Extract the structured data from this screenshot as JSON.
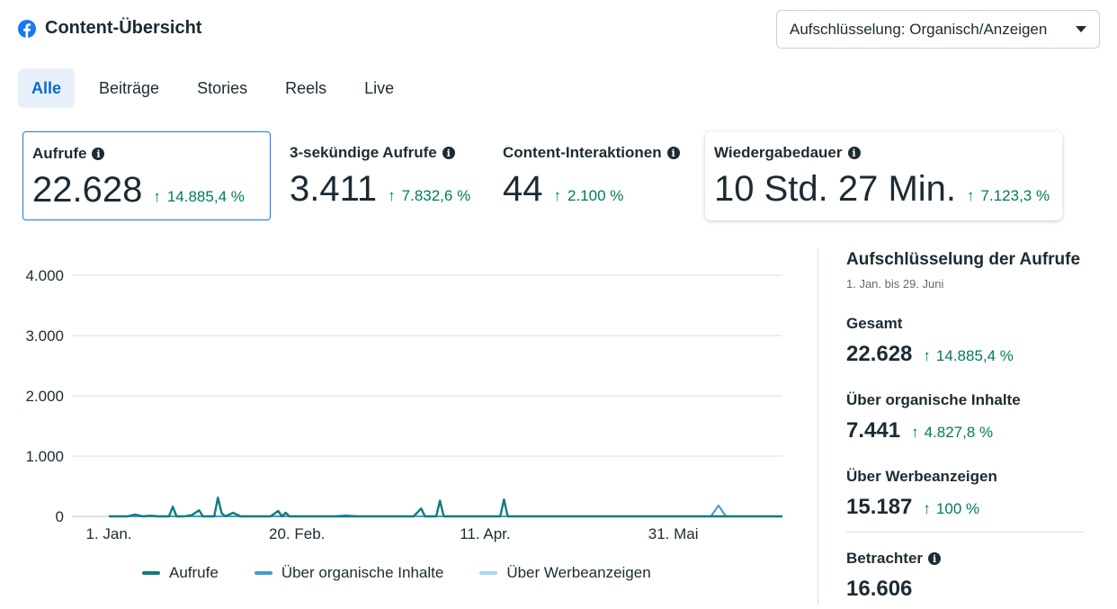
{
  "header": {
    "title": "Content-Übersicht",
    "icon": "facebook-icon"
  },
  "dropdown": {
    "label": "Aufschlüsselung: Organisch/Anzeigen"
  },
  "tabs": [
    {
      "label": "Alle",
      "active": true
    },
    {
      "label": "Beiträge",
      "active": false
    },
    {
      "label": "Stories",
      "active": false
    },
    {
      "label": "Reels",
      "active": false
    },
    {
      "label": "Live",
      "active": false
    }
  ],
  "metrics": [
    {
      "label": "Aufrufe",
      "value": "22.628",
      "change": "14.885,4 %"
    },
    {
      "label": "3-sekündige Aufrufe",
      "value": "3.411",
      "change": "7.832,6 %"
    },
    {
      "label": "Content-Interaktionen",
      "value": "44",
      "change": "2.100 %"
    },
    {
      "label": "Wiedergabedauer",
      "value": "10 Std. 27 Min.",
      "change": "7.123,3 %"
    }
  ],
  "chart_data": {
    "type": "line",
    "ylim": [
      0,
      4000
    ],
    "y_ticks": [
      "4.000",
      "3.000",
      "2.000",
      "1.000",
      "0"
    ],
    "x_ticks": [
      "1. Jan.",
      "20. Feb.",
      "11. Apr.",
      "31. Mai"
    ],
    "x_tick_days": [
      0,
      50,
      100,
      150
    ],
    "x_range_days": [
      0,
      179
    ],
    "grid": true,
    "legend_position": "bottom",
    "series": [
      {
        "name": "Aufrufe",
        "color": "#0e7c7b",
        "points": [
          [
            0,
            0
          ],
          [
            5,
            0
          ],
          [
            7,
            30
          ],
          [
            9,
            0
          ],
          [
            11,
            10
          ],
          [
            13,
            0
          ],
          [
            15,
            0
          ],
          [
            16,
            0
          ],
          [
            17,
            160
          ],
          [
            18,
            0
          ],
          [
            20,
            0
          ],
          [
            22,
            20
          ],
          [
            24,
            100
          ],
          [
            25,
            0
          ],
          [
            26,
            0
          ],
          [
            28,
            0
          ],
          [
            29,
            310
          ],
          [
            30,
            50
          ],
          [
            31,
            0
          ],
          [
            33,
            60
          ],
          [
            35,
            0
          ],
          [
            36,
            0
          ],
          [
            37,
            0
          ],
          [
            38,
            0
          ],
          [
            39,
            0
          ],
          [
            40,
            0
          ],
          [
            41,
            0
          ],
          [
            42,
            0
          ],
          [
            43,
            0
          ],
          [
            45,
            90
          ],
          [
            46,
            0
          ],
          [
            47,
            60
          ],
          [
            48,
            0
          ],
          [
            49,
            0
          ],
          [
            50,
            0
          ],
          [
            52,
            0
          ],
          [
            54,
            0
          ],
          [
            56,
            0
          ],
          [
            58,
            0
          ],
          [
            60,
            0
          ],
          [
            62,
            0
          ],
          [
            64,
            0
          ],
          [
            67,
            0
          ],
          [
            70,
            0
          ],
          [
            73,
            0
          ],
          [
            76,
            0
          ],
          [
            79,
            0
          ],
          [
            81,
            0
          ],
          [
            83,
            130
          ],
          [
            84,
            0
          ],
          [
            86,
            0
          ],
          [
            87,
            0
          ],
          [
            88,
            260
          ],
          [
            89,
            0
          ],
          [
            90,
            0
          ],
          [
            92,
            0
          ],
          [
            93,
            0
          ],
          [
            94,
            0
          ],
          [
            95,
            0
          ],
          [
            96,
            0
          ],
          [
            97,
            0
          ],
          [
            98,
            0
          ],
          [
            99,
            0
          ],
          [
            100,
            0
          ],
          [
            101,
            0
          ],
          [
            102,
            0
          ],
          [
            103,
            0
          ],
          [
            104,
            0
          ],
          [
            105,
            280
          ],
          [
            106,
            0
          ],
          [
            107,
            0
          ],
          [
            108,
            0
          ],
          [
            109,
            0
          ],
          [
            110,
            0
          ],
          [
            111,
            0
          ],
          [
            112,
            0
          ],
          [
            113,
            0
          ],
          [
            114,
            0
          ],
          [
            115,
            0
          ],
          [
            116,
            0
          ],
          [
            117,
            0
          ],
          [
            118,
            0
          ],
          [
            119,
            0
          ],
          [
            120,
            0
          ],
          [
            122,
            0
          ],
          [
            124,
            0
          ],
          [
            125,
            0
          ],
          [
            126,
            0
          ],
          [
            127,
            0
          ],
          [
            128,
            0
          ],
          [
            129,
            0
          ],
          [
            130,
            0
          ],
          [
            131,
            0
          ],
          [
            132,
            0
          ],
          [
            133,
            0
          ],
          [
            135,
            0
          ],
          [
            136,
            0
          ],
          [
            137,
            0
          ],
          [
            138,
            0
          ],
          [
            139,
            0
          ],
          [
            140,
            0
          ],
          [
            141,
            0
          ],
          [
            142,
            0
          ],
          [
            143,
            0
          ],
          [
            144,
            0
          ],
          [
            145,
            0
          ],
          [
            146,
            0
          ],
          [
            147,
            0
          ],
          [
            148,
            0
          ],
          [
            149,
            0
          ],
          [
            150,
            0
          ],
          [
            151,
            0
          ],
          [
            152,
            0
          ],
          [
            153,
            0
          ],
          [
            154,
            0
          ],
          [
            155,
            0
          ],
          [
            156,
            0
          ],
          [
            157,
            0
          ],
          [
            158,
            0
          ],
          [
            159,
            0
          ],
          [
            160,
            0
          ],
          [
            161,
            0
          ],
          [
            162,
            0
          ],
          [
            164,
            0
          ],
          [
            165,
            0
          ],
          [
            166,
            0
          ],
          [
            167,
            0
          ],
          [
            168,
            0
          ],
          [
            169,
            0
          ],
          [
            170,
            0
          ],
          [
            171,
            0
          ],
          [
            172,
            0
          ],
          [
            173,
            0
          ],
          [
            174,
            0
          ],
          [
            175,
            0
          ],
          [
            176,
            0
          ],
          [
            177,
            0
          ],
          [
            178,
            0
          ],
          [
            179,
            0
          ]
        ]
      },
      {
        "name": "Über organische Inhalte",
        "color": "#4598d6",
        "points": [
          [
            0,
            0
          ],
          [
            60,
            0
          ],
          [
            63,
            20
          ],
          [
            66,
            0
          ],
          [
            125,
            0
          ],
          [
            160,
            0
          ],
          [
            162,
            180
          ],
          [
            164,
            0
          ],
          [
            179,
            0
          ]
        ]
      },
      {
        "name": "Über Werbeanzeigen",
        "color": "#a7d8f5",
        "points": [
          [
            0,
            0
          ],
          [
            179,
            0
          ]
        ]
      }
    ]
  },
  "breakdown": {
    "title": "Aufschlüsselung der Aufrufe",
    "subtitle": "1. Jan. bis 29. Juni",
    "total": {
      "label": "Gesamt",
      "value": "22.628",
      "change": "14.885,4 %"
    },
    "organic": {
      "label": "Über organische Inhalte",
      "value": "7.441",
      "change": "4.827,8 %"
    },
    "ads": {
      "label": "Über Werbeanzeigen",
      "value": "15.187",
      "change": "100 %"
    },
    "viewers": {
      "label": "Betrachter",
      "value": "16.606"
    }
  },
  "colors": {
    "accent": "#1b74e4",
    "positive": "#007a5e",
    "brand": "#1877f2"
  }
}
